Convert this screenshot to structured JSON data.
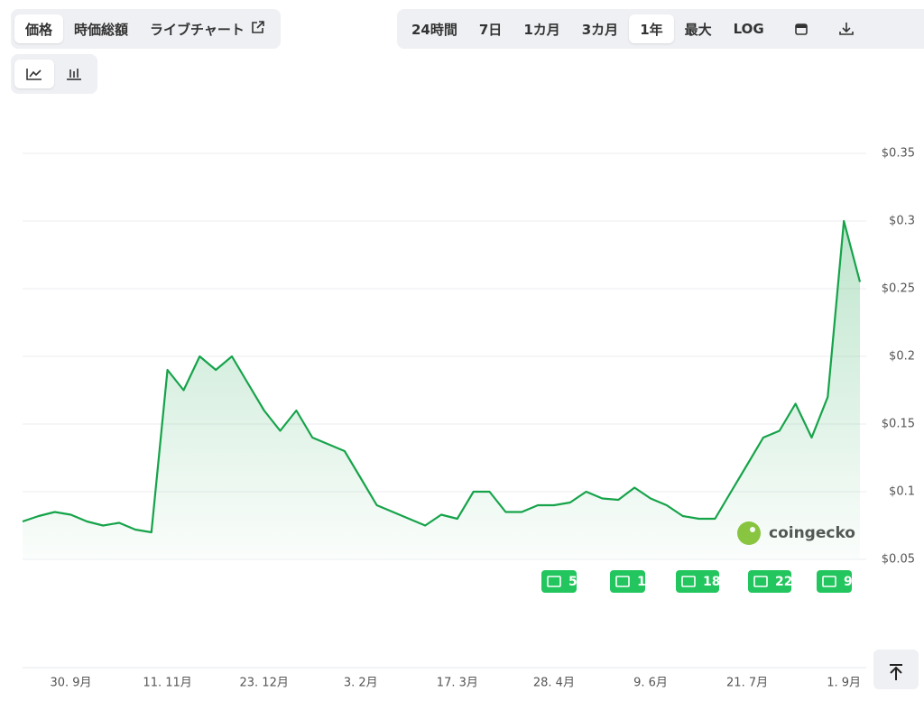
{
  "tabs_left": [
    "価格",
    "時価総額",
    "ライブチャート"
  ],
  "tabs_right": [
    "24時間",
    "7日",
    "1カ月",
    "3カ月",
    "1年",
    "最大",
    "LOG"
  ],
  "watermark": "coingecko",
  "news_counts": [
    5,
    1,
    18,
    22,
    9
  ],
  "chart_data": {
    "type": "line",
    "categories": [
      null,
      null,
      null,
      "30. 9月",
      null,
      null,
      null,
      null,
      null,
      "11. 11月",
      null,
      null,
      null,
      null,
      null,
      "23. 12月",
      null,
      null,
      null,
      null,
      null,
      "3. 2月",
      null,
      null,
      null,
      null,
      null,
      "17. 3月",
      null,
      null,
      null,
      null,
      null,
      "28. 4月",
      null,
      null,
      null,
      null,
      null,
      "9. 6月",
      null,
      null,
      null,
      null,
      null,
      "21. 7月",
      null,
      null,
      null,
      null,
      null,
      "1. 9月",
      null
    ],
    "series": [
      {
        "color": "#16a34a",
        "values": [
          0.078,
          0.082,
          0.085,
          0.083,
          0.078,
          0.075,
          0.077,
          0.072,
          0.07,
          0.19,
          0.175,
          0.2,
          0.19,
          0.2,
          0.18,
          0.16,
          0.145,
          0.16,
          0.14,
          0.135,
          0.13,
          0.11,
          0.09,
          0.085,
          0.08,
          0.075,
          0.083,
          0.08,
          0.1,
          0.1,
          0.085,
          0.085,
          0.09,
          0.09,
          0.092,
          0.1,
          0.095,
          0.094,
          0.103,
          0.095,
          0.09,
          0.082,
          0.08,
          0.08,
          0.1,
          0.12,
          0.14,
          0.145,
          0.165,
          0.14,
          0.17,
          0.3,
          0.255
        ]
      }
    ],
    "ylim": [
      0.05,
      0.35
    ],
    "yticks": [
      {
        "value": 0.05,
        "label": "$0.05"
      },
      {
        "value": 0.1,
        "label": "$0.1"
      },
      {
        "value": 0.15,
        "label": "$0.15"
      },
      {
        "value": 0.2,
        "label": "$0.2"
      },
      {
        "value": 0.25,
        "label": "$0.25"
      },
      {
        "value": 0.3,
        "label": "$0.3"
      },
      {
        "value": 0.35,
        "label": "$0.35"
      }
    ],
    "grid": true
  }
}
